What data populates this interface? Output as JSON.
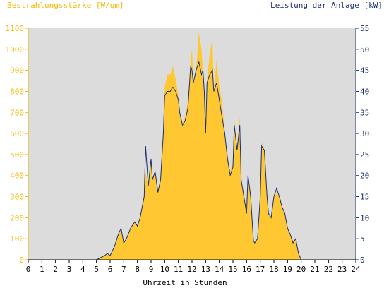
{
  "chart_data": {
    "type": "area",
    "left_axis_label": "Bestrahlungsstärke [W/qm]",
    "right_axis_label": "Leistung der Anlage [kW]",
    "xlabel": "Uhrzeit in Stunden",
    "xlim": [
      0,
      24
    ],
    "ylim_left": [
      0,
      1100
    ],
    "ylim_right": [
      0,
      55
    ],
    "x_ticks": [
      "0",
      "1",
      "2",
      "3",
      "4",
      "5",
      "6",
      "7",
      "8",
      "9",
      "10",
      "11",
      "12",
      "13",
      "14",
      "15",
      "16",
      "17",
      "18",
      "19",
      "20",
      "21",
      "22",
      "23",
      "24"
    ],
    "y_ticks_left": [
      "0",
      "100",
      "200",
      "300",
      "400",
      "500",
      "600",
      "700",
      "800",
      "900",
      "1000",
      "1100"
    ],
    "y_ticks_right": [
      "0",
      "5",
      "10",
      "15",
      "20",
      "25",
      "30",
      "35",
      "40",
      "45",
      "50",
      "55"
    ],
    "grid": false,
    "colors": {
      "plot_background": "#dcdcdc",
      "irradiance_fill": "#ffc832",
      "power_line": "#1a2e6e",
      "left_axis": "#f5b800",
      "right_axis": "#1a2e6e"
    },
    "series": [
      {
        "axis": "left",
        "x": [
          0,
          5.0,
          5.3,
          5.6,
          5.8,
          6.0,
          6.3,
          6.6,
          6.8,
          7.0,
          7.2,
          7.5,
          7.8,
          8.0,
          8.2,
          8.5,
          8.6,
          8.8,
          9.0,
          9.1,
          9.3,
          9.5,
          9.7,
          9.9,
          10.0,
          10.2,
          10.4,
          10.6,
          10.8,
          11.0,
          11.1,
          11.3,
          11.5,
          11.7,
          11.9,
          12.0,
          12.1,
          12.3,
          12.5,
          12.7,
          12.8,
          12.9,
          13.0,
          13.1,
          13.3,
          13.5,
          13.6,
          13.8,
          14.0,
          14.2,
          14.4,
          14.6,
          14.8,
          15.0,
          15.1,
          15.3,
          15.5,
          15.6,
          15.8,
          16.0,
          16.1,
          16.3,
          16.5,
          16.6,
          16.8,
          17.0,
          17.1,
          17.3,
          17.5,
          17.6,
          17.8,
          18.0,
          18.2,
          18.4,
          18.6,
          18.8,
          19.0,
          19.2,
          19.4,
          19.6,
          19.8,
          20.0,
          24
        ],
        "values": [
          0,
          0,
          10,
          20,
          30,
          20,
          60,
          120,
          150,
          80,
          100,
          150,
          180,
          160,
          200,
          300,
          420,
          350,
          480,
          380,
          420,
          320,
          380,
          600,
          820,
          880,
          880,
          920,
          860,
          780,
          700,
          650,
          680,
          750,
          950,
          1000,
          850,
          900,
          1080,
          1000,
          900,
          800,
          600,
          850,
          980,
          1050,
          800,
          950,
          820,
          750,
          600,
          500,
          420,
          460,
          660,
          540,
          680,
          380,
          300,
          220,
          400,
          300,
          90,
          80,
          100,
          300,
          560,
          520,
          300,
          220,
          200,
          300,
          320,
          300,
          250,
          220,
          150,
          120,
          80,
          100,
          30,
          0,
          0
        ]
      },
      {
        "axis": "right",
        "x": [
          0,
          5.0,
          5.3,
          5.6,
          5.8,
          6.0,
          6.3,
          6.6,
          6.8,
          7.0,
          7.2,
          7.5,
          7.8,
          8.0,
          8.2,
          8.5,
          8.6,
          8.8,
          9.0,
          9.1,
          9.3,
          9.5,
          9.7,
          9.9,
          10.0,
          10.2,
          10.4,
          10.6,
          10.8,
          11.0,
          11.1,
          11.3,
          11.5,
          11.7,
          11.9,
          12.0,
          12.1,
          12.3,
          12.5,
          12.7,
          12.8,
          12.9,
          13.0,
          13.1,
          13.3,
          13.5,
          13.6,
          13.8,
          14.0,
          14.2,
          14.4,
          14.6,
          14.8,
          15.0,
          15.1,
          15.3,
          15.5,
          15.6,
          15.8,
          16.0,
          16.1,
          16.3,
          16.5,
          16.6,
          16.8,
          17.0,
          17.1,
          17.3,
          17.5,
          17.6,
          17.8,
          18.0,
          18.2,
          18.4,
          18.6,
          18.8,
          19.0,
          19.2,
          19.4,
          19.6,
          19.8,
          20.0,
          24
        ],
        "values": [
          0,
          0,
          0.5,
          1,
          1.5,
          1,
          3,
          6,
          7.5,
          4,
          5,
          7.5,
          9,
          8,
          10,
          15,
          27,
          17.5,
          24,
          19,
          21,
          16,
          19,
          30,
          39,
          40,
          40,
          41,
          40,
          38,
          35,
          32,
          33,
          36,
          46,
          45,
          42,
          45,
          47,
          44,
          45,
          40,
          30,
          42,
          44,
          45,
          40,
          42,
          38,
          34,
          30,
          24,
          20,
          22,
          32,
          26,
          32,
          19,
          15,
          11,
          20,
          15,
          4.5,
          4,
          5,
          15,
          27,
          26,
          15,
          11,
          10,
          15,
          17,
          15,
          12.5,
          11,
          7.5,
          6,
          4,
          5,
          1.5,
          0,
          0
        ]
      }
    ]
  }
}
